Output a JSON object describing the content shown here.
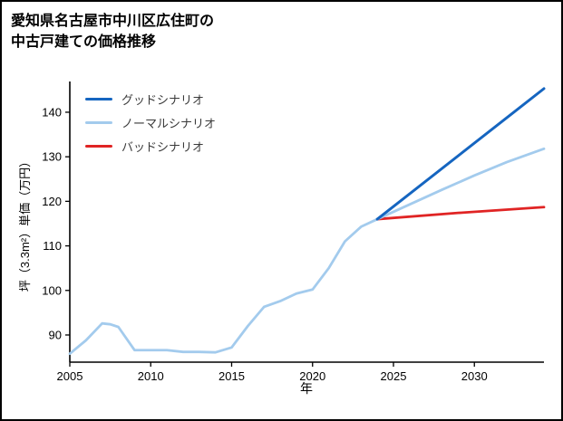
{
  "title": {
    "line1": "愛知県名古屋市中川区広住町の",
    "line2": "中古戸建ての価格推移"
  },
  "chart_data": {
    "type": "line",
    "title": "愛知県名古屋市中川区広住町の中古戸建ての価格推移",
    "xlabel": "年",
    "ylabel": "坪（3.3m²）単価（万円）",
    "xlim": [
      2005,
      2034.3
    ],
    "ylim": [
      83.9,
      146.9
    ],
    "xticks": [
      2005,
      2010,
      2015,
      2020,
      2025,
      2030
    ],
    "yticks": [
      90,
      100,
      110,
      120,
      130,
      140
    ],
    "grid": false,
    "legend_position": "upper-left",
    "axis_color": "#000000",
    "series": [
      {
        "name": "グッドシナリオ",
        "color": "#1565c0",
        "width": 3,
        "x": [
          2024,
          2034.3
        ],
        "y": [
          116,
          145.3
        ]
      },
      {
        "name": "ノーマルシナリオ",
        "color": "#a3cbed",
        "width": 2.8,
        "x": [
          2005,
          2006,
          2007,
          2007.5,
          2008,
          2009,
          2010,
          2011,
          2012,
          2013,
          2014,
          2015,
          2016,
          2017,
          2018,
          2019,
          2020,
          2021,
          2022,
          2023,
          2024,
          2026,
          2028,
          2030,
          2032,
          2034.3
        ],
        "y": [
          85.8,
          88.8,
          92.6,
          92.4,
          91.8,
          86.6,
          86.6,
          86.6,
          86.2,
          86.2,
          86.1,
          87.2,
          92.0,
          96.3,
          97.6,
          99.3,
          100.2,
          105.0,
          111.0,
          114.3,
          116.0,
          119.3,
          122.6,
          125.8,
          128.8,
          131.8
        ]
      },
      {
        "name": "バッドシナリオ",
        "color": "#e02424",
        "width": 2.8,
        "x": [
          2024,
          2029,
          2034.3
        ],
        "y": [
          116,
          117.4,
          118.7
        ]
      }
    ]
  }
}
